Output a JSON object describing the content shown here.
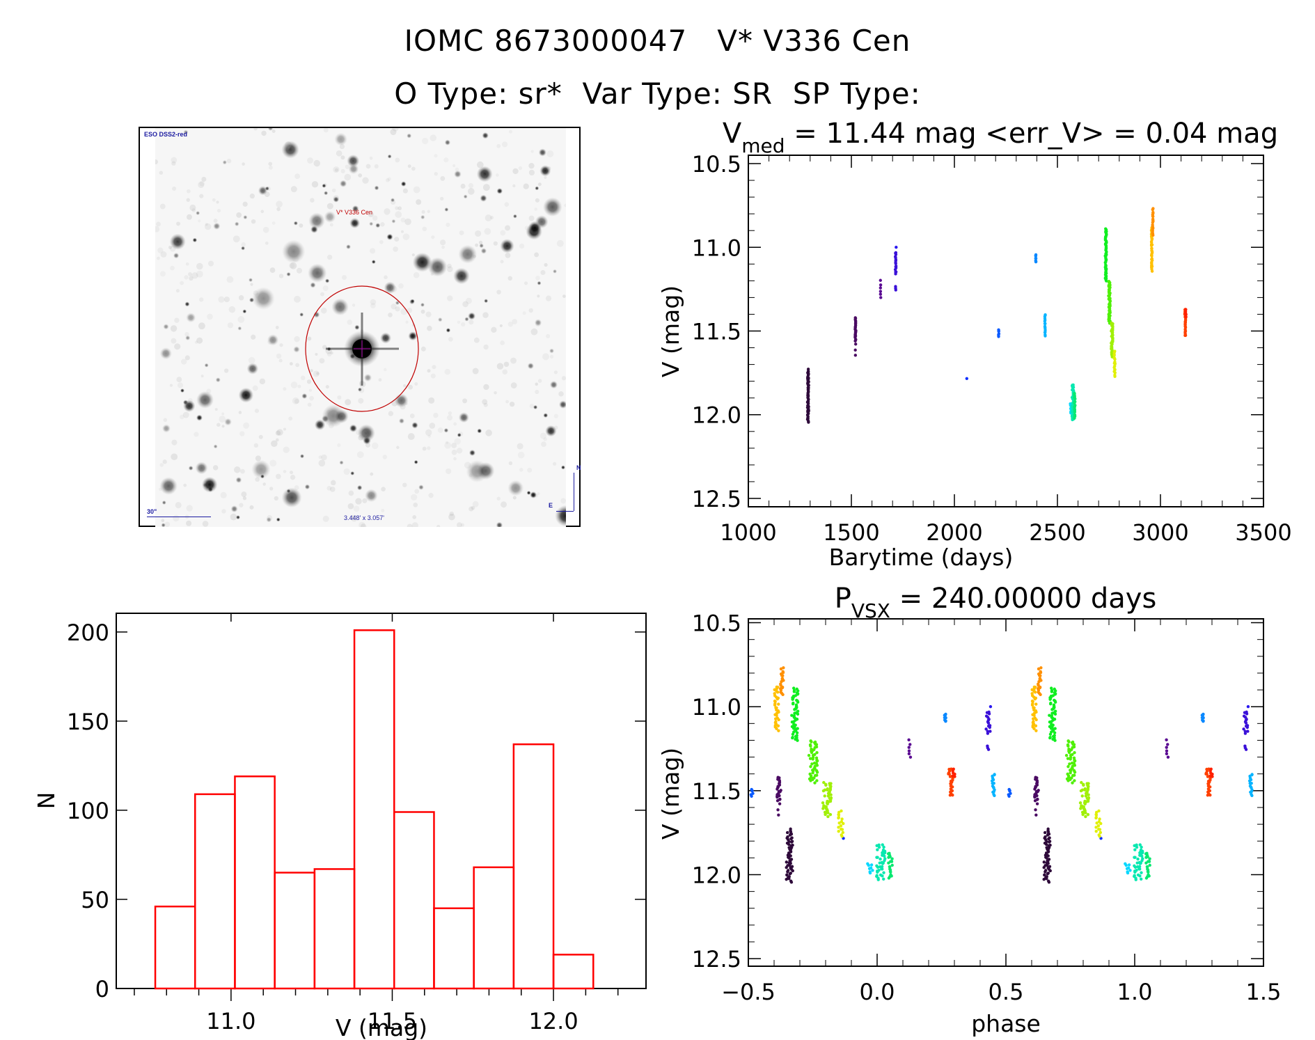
{
  "header": {
    "title_line1": "IOMC 8673000047   V* V336 Cen",
    "title_line2": "O Type: sr*  Var Type: SR  SP Type:"
  },
  "starfield": {
    "survey_label": "ESO DSS2-red",
    "target_label": "V* V336 Cen",
    "scale_bar_label": "30\"",
    "field_size_label": "3.448' x 3.057'",
    "compass_north": "N",
    "compass_east": "E",
    "colors": {
      "survey_text": "#1a1aa0",
      "target_text": "#c00000",
      "circle": "#c00000",
      "crosshair": "#a000a0"
    }
  },
  "chart_data": [
    {
      "id": "lightcurve",
      "type": "scatter",
      "title_main": "V",
      "title_sub": "med",
      "title_rest": " = 11.44 mag <err_V> = 0.04 mag",
      "xlabel": "Barytime (days)",
      "ylabel": "V (mag)",
      "xlim": [
        1000,
        3500
      ],
      "ylim": [
        12.55,
        10.45
      ],
      "y_inverted": true,
      "xticks": [
        1000,
        1500,
        2000,
        2500,
        3000,
        3500
      ],
      "xtick_labels": [
        "1000",
        "1500",
        "2000",
        "2500",
        "3000",
        "3500"
      ],
      "yticks": [
        10.5,
        11.0,
        11.5,
        12.0,
        12.5
      ],
      "ytick_labels": [
        "10.5",
        "11.0",
        "11.5",
        "12.0",
        "12.5"
      ],
      "grid": false,
      "clusters": [
        {
          "t": 1290,
          "dt": 6,
          "mag_top": 11.73,
          "mag_bottom": 12.04,
          "n": 60,
          "color": "#2e0a3a"
        },
        {
          "t": 1520,
          "dt": 4,
          "mag_top": 11.42,
          "mag_bottom": 11.56,
          "n": 25,
          "color": "#4a0a62"
        },
        {
          "t": 1520,
          "dt": 2,
          "mag_top": 11.58,
          "mag_bottom": 11.64,
          "n": 3,
          "color": "#4a0a62"
        },
        {
          "t": 1642,
          "dt": 3,
          "mag_top": 11.2,
          "mag_bottom": 11.3,
          "n": 6,
          "color": "#5a0a92"
        },
        {
          "t": 1715,
          "dt": 4,
          "mag_top": 11.03,
          "mag_bottom": 11.16,
          "n": 16,
          "color": "#3a10d8"
        },
        {
          "t": 1715,
          "dt": 2,
          "mag_top": 11.23,
          "mag_bottom": 11.25,
          "n": 3,
          "color": "#3a10d8"
        },
        {
          "t": 1717,
          "dt": 1,
          "mag_top": 11.0,
          "mag_bottom": 11.0,
          "n": 1,
          "color": "#2a18f0"
        },
        {
          "t": 2060,
          "dt": 1,
          "mag_top": 11.78,
          "mag_bottom": 11.78,
          "n": 1,
          "color": "#1030ff"
        },
        {
          "t": 2215,
          "dt": 2,
          "mag_top": 11.49,
          "mag_bottom": 11.53,
          "n": 6,
          "color": "#0a5aff"
        },
        {
          "t": 2395,
          "dt": 2,
          "mag_top": 11.04,
          "mag_bottom": 11.09,
          "n": 8,
          "color": "#0a88ff"
        },
        {
          "t": 2440,
          "dt": 3,
          "mag_top": 11.4,
          "mag_bottom": 11.53,
          "n": 16,
          "color": "#08b4ff"
        },
        {
          "t": 2565,
          "dt": 5,
          "mag_top": 11.93,
          "mag_bottom": 11.99,
          "n": 8,
          "color": "#08d8ff"
        },
        {
          "t": 2575,
          "dt": 8,
          "mag_top": 11.82,
          "mag_bottom": 12.03,
          "n": 40,
          "color": "#08e8b0"
        },
        {
          "t": 2584,
          "dt": 4,
          "mag_top": 11.87,
          "mag_bottom": 12.02,
          "n": 20,
          "color": "#08e870"
        },
        {
          "t": 2735,
          "dt": 6,
          "mag_top": 10.89,
          "mag_bottom": 11.2,
          "n": 60,
          "color": "#10ee20"
        },
        {
          "t": 2752,
          "dt": 8,
          "mag_top": 11.2,
          "mag_bottom": 11.45,
          "n": 50,
          "color": "#50f008"
        },
        {
          "t": 2765,
          "dt": 8,
          "mag_top": 11.45,
          "mag_bottom": 11.65,
          "n": 45,
          "color": "#a0f008"
        },
        {
          "t": 2778,
          "dt": 5,
          "mag_top": 11.62,
          "mag_bottom": 11.77,
          "n": 18,
          "color": "#e0f008"
        },
        {
          "t": 2958,
          "dt": 4,
          "mag_top": 10.88,
          "mag_bottom": 11.14,
          "n": 35,
          "color": "#ffc000"
        },
        {
          "t": 2963,
          "dt": 3,
          "mag_top": 10.77,
          "mag_bottom": 10.93,
          "n": 20,
          "color": "#ff9000"
        },
        {
          "t": 3120,
          "dt": 4,
          "mag_top": 11.37,
          "mag_bottom": 11.53,
          "n": 24,
          "color": "#ff4000"
        },
        {
          "t": 3123,
          "dt": 2,
          "mag_top": 11.37,
          "mag_bottom": 11.42,
          "n": 6,
          "color": "#ff2000"
        }
      ]
    },
    {
      "id": "histogram",
      "type": "bar",
      "title": "",
      "xlabel": "V (mag)",
      "ylabel": "N",
      "xlim": [
        10.644,
        12.287
      ],
      "ylim": [
        0,
        210.5
      ],
      "bin_edges": [
        10.765,
        10.8885,
        11.012,
        11.1355,
        11.259,
        11.3825,
        11.506,
        11.6295,
        11.753,
        11.8765,
        12.0,
        12.1235
      ],
      "values": [
        46,
        109,
        119,
        65,
        67,
        201,
        99,
        45,
        68,
        137,
        19
      ],
      "xticks": [
        11.0,
        11.5,
        12.0
      ],
      "xtick_labels": [
        "11.0",
        "11.5",
        "12.0"
      ],
      "yticks": [
        0,
        50,
        100,
        150,
        200
      ],
      "ytick_labels": [
        "0",
        "50",
        "100",
        "150",
        "200"
      ],
      "bar_color": "#ff0000",
      "grid": false
    },
    {
      "id": "phased",
      "type": "scatter",
      "title_main": "P",
      "title_sub": "VSX",
      "title_rest": " = 240.00000 days",
      "period_days": 240.0,
      "epoch": 1131.6,
      "xlabel": "phase",
      "ylabel": "V (mag)",
      "xlim": [
        -0.5,
        1.5
      ],
      "ylim": [
        12.545,
        10.477
      ],
      "y_inverted": true,
      "xticks": [
        -0.5,
        0.0,
        0.5,
        1.0,
        1.5
      ],
      "xtick_labels": [
        "−0.5",
        "0.0",
        "0.5",
        "1.0",
        "1.5"
      ],
      "yticks": [
        10.5,
        11.0,
        11.5,
        12.0,
        12.5
      ],
      "ytick_labels": [
        "10.5",
        "11.0",
        "11.5",
        "12.0",
        "12.5"
      ],
      "grid": false,
      "source": "lightcurve"
    }
  ]
}
